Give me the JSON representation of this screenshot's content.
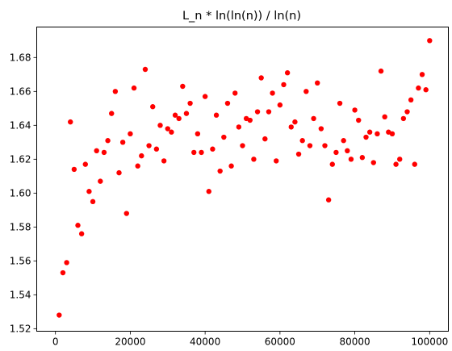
{
  "chart_data": {
    "type": "scatter",
    "title": "L_n * ln(ln(n)) / ln(n)",
    "xlabel": "",
    "ylabel": "",
    "xlim": [
      -5000,
      105000
    ],
    "ylim": [
      1.5185,
      1.698
    ],
    "grid": false,
    "marker_color": "#ff0000",
    "x_ticks": [
      0,
      20000,
      40000,
      60000,
      80000,
      100000
    ],
    "x_tick_labels": [
      "0",
      "20000",
      "40000",
      "60000",
      "80000",
      "100000"
    ],
    "y_ticks": [
      1.52,
      1.54,
      1.56,
      1.58,
      1.6,
      1.62,
      1.64,
      1.66,
      1.68
    ],
    "y_tick_labels": [
      "1.52",
      "1.54",
      "1.56",
      "1.58",
      "1.60",
      "1.62",
      "1.64",
      "1.66",
      "1.68"
    ],
    "series": [
      {
        "points": [
          [
            1000,
            1.528
          ],
          [
            2000,
            1.553
          ],
          [
            3000,
            1.559
          ],
          [
            4000,
            1.642
          ],
          [
            5000,
            1.614
          ],
          [
            6000,
            1.581
          ],
          [
            7000,
            1.576
          ],
          [
            8000,
            1.617
          ],
          [
            9000,
            1.601
          ],
          [
            10000,
            1.595
          ],
          [
            11000,
            1.625
          ],
          [
            12000,
            1.607
          ],
          [
            13000,
            1.624
          ],
          [
            14000,
            1.631
          ],
          [
            15000,
            1.647
          ],
          [
            16000,
            1.66
          ],
          [
            17000,
            1.612
          ],
          [
            18000,
            1.63
          ],
          [
            19000,
            1.588
          ],
          [
            20000,
            1.635
          ],
          [
            21000,
            1.662
          ],
          [
            22000,
            1.616
          ],
          [
            23000,
            1.622
          ],
          [
            24000,
            1.673
          ],
          [
            25000,
            1.628
          ],
          [
            26000,
            1.651
          ],
          [
            27000,
            1.626
          ],
          [
            28000,
            1.64
          ],
          [
            29000,
            1.619
          ],
          [
            30000,
            1.638
          ],
          [
            31000,
            1.636
          ],
          [
            32000,
            1.646
          ],
          [
            33000,
            1.644
          ],
          [
            34000,
            1.663
          ],
          [
            35000,
            1.647
          ],
          [
            36000,
            1.653
          ],
          [
            37000,
            1.624
          ],
          [
            38000,
            1.635
          ],
          [
            39000,
            1.624
          ],
          [
            40000,
            1.657
          ],
          [
            41000,
            1.601
          ],
          [
            42000,
            1.626
          ],
          [
            43000,
            1.646
          ],
          [
            44000,
            1.613
          ],
          [
            45000,
            1.633
          ],
          [
            46000,
            1.653
          ],
          [
            47000,
            1.616
          ],
          [
            48000,
            1.659
          ],
          [
            49000,
            1.639
          ],
          [
            50000,
            1.628
          ],
          [
            51000,
            1.644
          ],
          [
            52000,
            1.643
          ],
          [
            53000,
            1.62
          ],
          [
            54000,
            1.648
          ],
          [
            55000,
            1.668
          ],
          [
            56000,
            1.632
          ],
          [
            57000,
            1.648
          ],
          [
            58000,
            1.659
          ],
          [
            59000,
            1.619
          ],
          [
            60000,
            1.652
          ],
          [
            61000,
            1.664
          ],
          [
            62000,
            1.671
          ],
          [
            63000,
            1.639
          ],
          [
            64000,
            1.642
          ],
          [
            65000,
            1.623
          ],
          [
            66000,
            1.631
          ],
          [
            67000,
            1.66
          ],
          [
            68000,
            1.628
          ],
          [
            69000,
            1.644
          ],
          [
            70000,
            1.665
          ],
          [
            71000,
            1.638
          ],
          [
            72000,
            1.628
          ],
          [
            73000,
            1.596
          ],
          [
            74000,
            1.617
          ],
          [
            75000,
            1.624
          ],
          [
            76000,
            1.653
          ],
          [
            77000,
            1.631
          ],
          [
            78000,
            1.625
          ],
          [
            79000,
            1.62
          ],
          [
            80000,
            1.649
          ],
          [
            81000,
            1.643
          ],
          [
            82000,
            1.621
          ],
          [
            83000,
            1.633
          ],
          [
            84000,
            1.636
          ],
          [
            85000,
            1.618
          ],
          [
            86000,
            1.635
          ],
          [
            87000,
            1.672
          ],
          [
            88000,
            1.645
          ],
          [
            89000,
            1.636
          ],
          [
            90000,
            1.635
          ],
          [
            91000,
            1.617
          ],
          [
            92000,
            1.62
          ],
          [
            93000,
            1.644
          ],
          [
            94000,
            1.648
          ],
          [
            95000,
            1.655
          ],
          [
            96000,
            1.617
          ],
          [
            97000,
            1.662
          ],
          [
            98000,
            1.67
          ],
          [
            99000,
            1.661
          ],
          [
            100000,
            1.69
          ]
        ]
      }
    ]
  }
}
